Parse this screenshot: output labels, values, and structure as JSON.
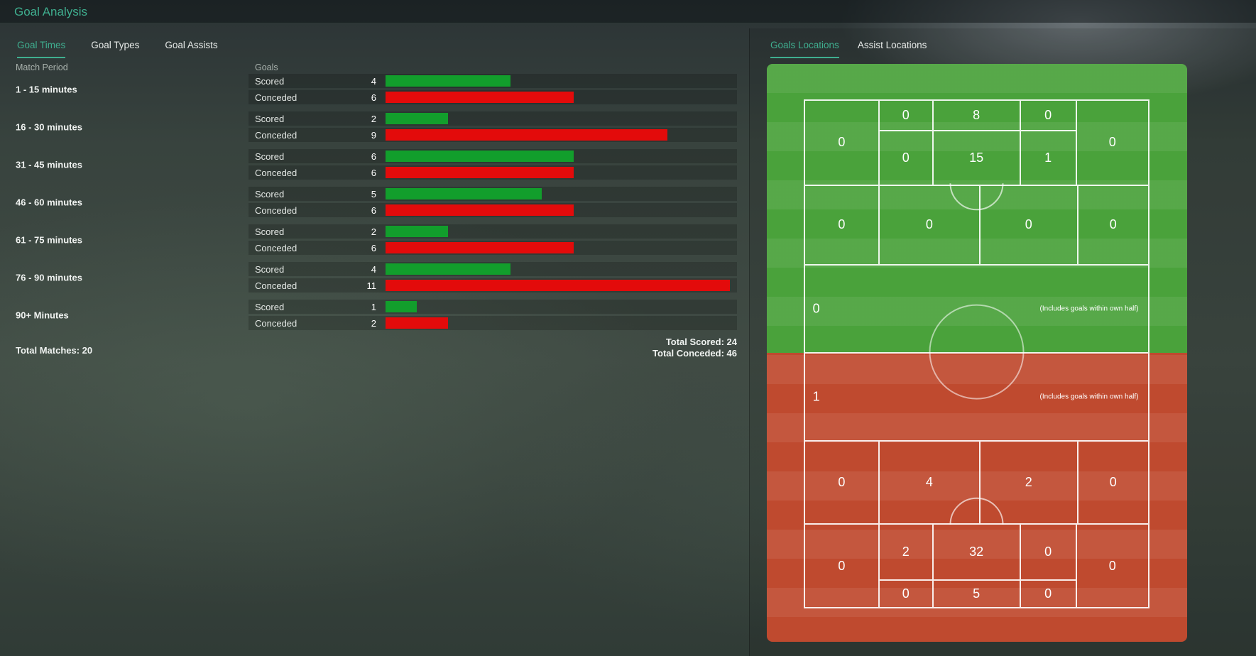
{
  "title": "Goal Analysis",
  "colors": {
    "accent": "#3fae8f",
    "scored": "#129e2c",
    "conceded": "#e30b0b",
    "pitch-green": "#4aa23b",
    "pitch-red": "#bf4a2f"
  },
  "left_tabs": {
    "goal_times": "Goal Times",
    "goal_types": "Goal Types",
    "goal_assists": "Goal Assists"
  },
  "table": {
    "match_period_header": "Match Period",
    "goals_header": "Goals",
    "scored_label": "Scored",
    "conceded_label": "Conceded",
    "bar_max": 11,
    "rows": [
      {
        "period": "1 - 15 minutes",
        "scored": "4",
        "conceded": "6"
      },
      {
        "period": "16 - 30 minutes",
        "scored": "2",
        "conceded": "9"
      },
      {
        "period": "31 - 45 minutes",
        "scored": "6",
        "conceded": "6"
      },
      {
        "period": "46 - 60 minutes",
        "scored": "5",
        "conceded": "6"
      },
      {
        "period": "61 - 75 minutes",
        "scored": "2",
        "conceded": "6"
      },
      {
        "period": "76 - 90 minutes",
        "scored": "4",
        "conceded": "11"
      },
      {
        "period": "90+ Minutes",
        "scored": "1",
        "conceded": "2"
      }
    ],
    "total_matches": "Total Matches: 20",
    "total_scored": "Total Scored: 24",
    "total_conceded": "Total Conceded: 46"
  },
  "right_tabs": {
    "goals_locations": "Goals Locations",
    "assist_locations": "Assist Locations"
  },
  "pitch": {
    "top": {
      "wide_left": "0",
      "wide_right": "0",
      "six_yard_row": [
        "0",
        "8",
        "0"
      ],
      "penalty_row": [
        "0",
        "15",
        "1"
      ],
      "edge_row": [
        "0",
        "0",
        "0",
        "0"
      ],
      "own_half_value": "0",
      "own_half_note": "(Includes goals within own half)"
    },
    "bottom": {
      "own_half_value": "1",
      "own_half_note": "(Includes goals within own half)",
      "edge_row": [
        "0",
        "4",
        "2",
        "0"
      ],
      "wide_left": "0",
      "wide_right": "0",
      "penalty_row": [
        "2",
        "32",
        "0"
      ],
      "six_yard_row": [
        "0",
        "5",
        "0"
      ]
    }
  }
}
